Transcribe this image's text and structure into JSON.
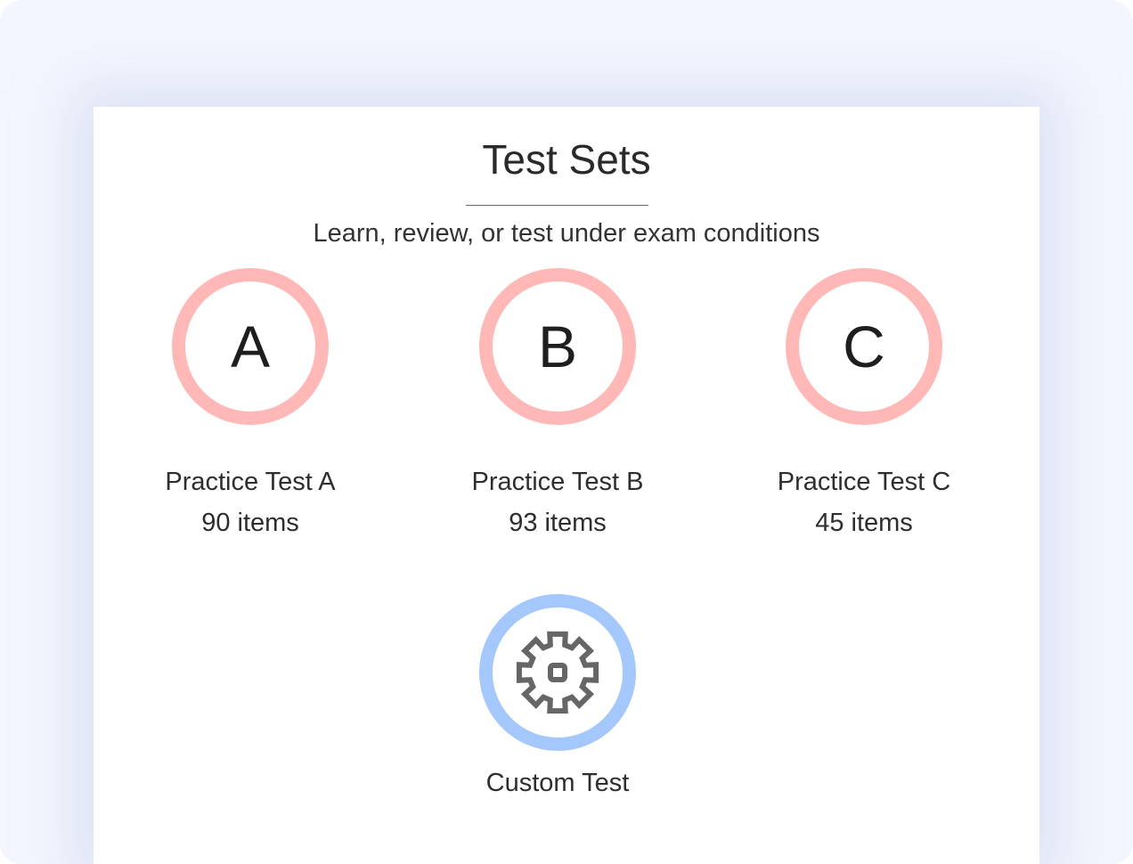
{
  "header": {
    "title": "Test Sets",
    "subtitle": "Learn, review, or test under exam conditions"
  },
  "tests": [
    {
      "letter": "A",
      "name": "Practice Test A",
      "count": "90 items"
    },
    {
      "letter": "B",
      "name": "Practice Test B",
      "count": "93 items"
    },
    {
      "letter": "C",
      "name": "Practice Test C",
      "count": "45 items"
    }
  ],
  "custom": {
    "name": "Custom Test",
    "icon": "gear-icon"
  },
  "colors": {
    "practice_ring": "#ffb8b5",
    "custom_ring": "#a4c8fb",
    "background": "#f3f6fe"
  }
}
